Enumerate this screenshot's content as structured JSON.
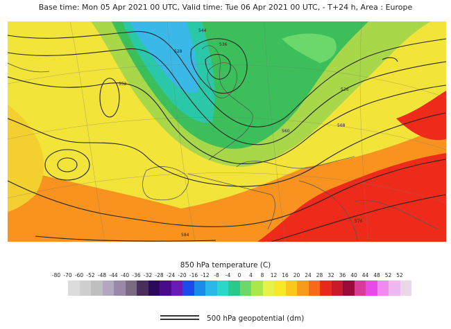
{
  "header": {
    "title": "Base time: Mon 05 Apr 2021 00 UTC, Valid time: Tue 06 Apr 2021 00 UTC, - T+24 h, Area : Europe"
  },
  "colorbar": {
    "title": "850 hPa temperature (C)",
    "ticks": [
      "-80",
      "-70",
      "-60",
      "-52",
      "-48",
      "-44",
      "-40",
      "-36",
      "-32",
      "-28",
      "-24",
      "-20",
      "-16",
      "-12",
      "-8",
      "-4",
      "0",
      "4",
      "8",
      "12",
      "16",
      "20",
      "24",
      "28",
      "32",
      "36",
      "40",
      "44",
      "48",
      "52",
      "52"
    ],
    "colors": [
      "#dcdcdc",
      "#cfcfcf",
      "#bfbfbf",
      "#b3a8c0",
      "#9a88a8",
      "#7a6a86",
      "#4a2e5a",
      "#2a0a5a",
      "#4a0a8a",
      "#6a1ab8",
      "#1a4ae8",
      "#1a8ae8",
      "#2ab8e8",
      "#2ad8c8",
      "#2ac88a",
      "#6ad86a",
      "#a8e84a",
      "#e8f04a",
      "#f8e82a",
      "#f8c81a",
      "#f89a1a",
      "#f86a1a",
      "#e82a1a",
      "#c81a2a",
      "#9a0a3a",
      "#d83a9a",
      "#e84ae8",
      "#f08af0",
      "#f0b8f0",
      "#e8d8e8"
    ]
  },
  "legend": {
    "label": "500 hPa geopotential (dm)"
  },
  "map": {
    "region": "Europe",
    "contour_labels": [
      "552",
      "560",
      "568",
      "576",
      "544",
      "536",
      "528",
      "520",
      "584"
    ],
    "colors": {
      "warm_red": "#ee2a1a",
      "orange": "#f7931e",
      "yellow": "#f3e43a",
      "light_green": "#a8d84a",
      "green": "#3cbf5a",
      "teal": "#2ac8a8",
      "cyan": "#3ab8e8",
      "coast": "#555555",
      "contour": "#222222"
    }
  }
}
